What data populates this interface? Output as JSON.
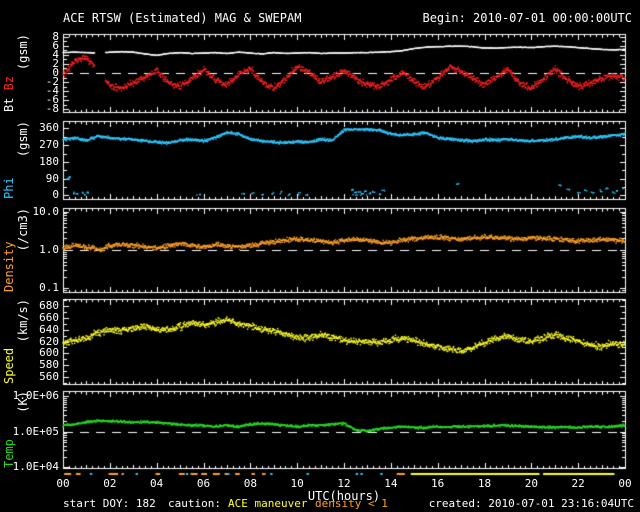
{
  "title": {
    "left": "ACE RTSW (Estimated) MAG & SWEPAM",
    "right": "Begin: 2010-07-01 00:00:00UTC"
  },
  "x_axis": {
    "label": "UTC(hours)",
    "tick_labels": [
      "00",
      "02",
      "04",
      "06",
      "08",
      "10",
      "12",
      "14",
      "16",
      "18",
      "20",
      "22",
      "00"
    ],
    "range_hours": [
      0,
      24
    ]
  },
  "footer": {
    "start_doy": "start DOY: 182",
    "caution_label": "caution:",
    "caution_maneuver": "ACE maneuver",
    "caution_density": "density < 1",
    "created": "created: 2010-07-01 23:16:04UTC"
  },
  "colors": {
    "background": "#000000",
    "frame": "#ffffff",
    "bt": "#ffffff",
    "bz": "#ff2222",
    "phi": "#2fc8ff",
    "density": "#ffa228",
    "speed": "#ffff2a",
    "temp": "#27d827"
  },
  "chart_data": {
    "type": "scatter",
    "title": "ACE RTSW (Estimated) MAG & SWEPAM",
    "xlabel": "UTC(hours)",
    "x_start": 0,
    "x_step": 0.5,
    "x_end": 24,
    "panels": [
      {
        "id": "mag",
        "label_parts": [
          {
            "text": "Bt",
            "color": "bt"
          },
          {
            "text": "Bz",
            "color": "bz"
          }
        ],
        "unit": "(gsm)",
        "scale": "linear",
        "range": [
          -8.6,
          8.6
        ],
        "ticks": {
          "major": [
            8,
            6,
            4,
            2,
            0,
            -2,
            -4,
            -6,
            -8
          ],
          "labels": [
            "8",
            "6",
            "4",
            "2",
            "0",
            "-2",
            "-4",
            "-6",
            "-8"
          ],
          "minor_step": 1
        },
        "dashed_at": 0,
        "gaps": [
          [
            1.35,
            1.8
          ]
        ],
        "series": [
          {
            "name": "Bt",
            "color": "bt",
            "style": "line",
            "noise": 0.1,
            "values": [
              4.5,
              4.6,
              4.5,
              4.4,
              4.6,
              4.7,
              4.6,
              4.2,
              3.9,
              4.3,
              4.5,
              4.3,
              4.4,
              4.5,
              4.3,
              4.6,
              4.4,
              4.2,
              4.5,
              4.3,
              4.4,
              4.5,
              4.3,
              4.4,
              4.4,
              4.5,
              4.5,
              4.6,
              4.7,
              4.9,
              5.4,
              5.7,
              5.8,
              5.9,
              5.9,
              5.8,
              5.5,
              5.5,
              5.6,
              5.7,
              5.6,
              5.8,
              5.9,
              5.8,
              5.6,
              5.4,
              5.2,
              5.1,
              5.2
            ]
          },
          {
            "name": "Bz",
            "color": "bz",
            "style": "scatter",
            "noise": 1.1,
            "values": [
              -0.5,
              2.6,
              3.4,
              0.5,
              -2.8,
              -3.4,
              -2.2,
              -1.0,
              0.4,
              -2.0,
              -3.0,
              -1.2,
              0.8,
              -1.6,
              -2.8,
              -0.2,
              0.9,
              -2.0,
              -3.4,
              -1.2,
              1.4,
              0.4,
              -2.0,
              -1.0,
              0.4,
              -1.2,
              -2.6,
              -3.0,
              -1.6,
              0.2,
              -2.0,
              -3.2,
              -1.2,
              1.4,
              0.4,
              -1.2,
              -2.6,
              -1.0,
              0.8,
              -2.2,
              -3.4,
              -1.2,
              0.8,
              -1.2,
              -3.0,
              -2.4,
              -1.2,
              -0.6,
              -1.0
            ]
          }
        ]
      },
      {
        "id": "phi",
        "label_parts": [
          {
            "text": "Phi",
            "color": "phi"
          }
        ],
        "unit": "(gsm)",
        "scale": "linear",
        "range": [
          -20,
          400
        ],
        "ticks": {
          "major": [
            360,
            270,
            180,
            90,
            0
          ],
          "labels": [
            "360",
            "270",
            "180",
            "90",
            "0"
          ],
          "minor_step": 45
        },
        "dashed_at": null,
        "series": [
          {
            "name": "Phi",
            "color": "phi",
            "style": "scatter",
            "noise": 11,
            "wrap360": true,
            "values": [
              300,
              308,
              296,
              318,
              310,
              304,
              300,
              292,
              286,
              282,
              296,
              300,
              292,
              310,
              338,
              330,
              302,
              292,
              286,
              282,
              290,
              286,
              300,
              296,
              350,
              356,
              354,
              352,
              330,
              324,
              330,
              336,
              312,
              302,
              296,
              292,
              300,
              296,
              300,
              296,
              292,
              296,
              300,
              310,
              318,
              310,
              315,
              322,
              330
            ]
          }
        ],
        "extra_points": [
          [
            0.25,
            88
          ],
          [
            0.3,
            96
          ],
          [
            0.45,
            12
          ],
          [
            0.6,
            6
          ],
          [
            0.8,
            15
          ],
          [
            0.95,
            4
          ],
          [
            1.1,
            10
          ],
          [
            5.8,
            3
          ],
          [
            7.7,
            6
          ],
          [
            8.1,
            12
          ],
          [
            8.5,
            4
          ],
          [
            8.9,
            9
          ],
          [
            9.3,
            14
          ],
          [
            9.7,
            5
          ],
          [
            10.1,
            10
          ],
          [
            10.4,
            3
          ],
          [
            12.35,
            28
          ],
          [
            12.5,
            12
          ],
          [
            12.65,
            20
          ],
          [
            12.8,
            8
          ],
          [
            12.95,
            24
          ],
          [
            13.1,
            10
          ],
          [
            13.3,
            16
          ],
          [
            13.5,
            6
          ],
          [
            13.7,
            22
          ],
          [
            16.9,
            60
          ],
          [
            21.2,
            50
          ],
          [
            21.6,
            30
          ],
          [
            22.0,
            18
          ],
          [
            22.3,
            25
          ],
          [
            22.6,
            12
          ],
          [
            23.0,
            22
          ],
          [
            23.2,
            35
          ],
          [
            23.5,
            15
          ],
          [
            23.7,
            28
          ],
          [
            23.9,
            40
          ]
        ]
      },
      {
        "id": "density",
        "label_parts": [
          {
            "text": "Density",
            "color": "density"
          }
        ],
        "unit": "(/cm3)",
        "scale": "log",
        "range": [
          0.08,
          12.5
        ],
        "ticks": {
          "major": [
            10,
            1,
            0.1
          ],
          "labels": [
            "10.0",
            "1.0",
            "0.1"
          ]
        },
        "dashed_at": 1,
        "series": [
          {
            "name": "Density",
            "color": "density",
            "style": "scatter",
            "noise": 0.09,
            "values": [
              1.1,
              1.3,
              1.2,
              1.0,
              1.3,
              1.4,
              1.3,
              1.2,
              1.1,
              1.3,
              1.4,
              1.3,
              1.2,
              1.4,
              1.3,
              1.2,
              1.3,
              1.5,
              1.6,
              1.8,
              1.9,
              1.8,
              1.7,
              1.5,
              1.8,
              1.9,
              1.8,
              1.6,
              1.5,
              1.8,
              2.0,
              2.1,
              2.2,
              2.0,
              1.9,
              2.1,
              2.2,
              2.1,
              2.0,
              1.9,
              2.1,
              2.0,
              1.9,
              1.8,
              1.7,
              1.8,
              1.9,
              1.8,
              1.7
            ]
          }
        ]
      },
      {
        "id": "speed",
        "label_parts": [
          {
            "text": "Speed",
            "color": "speed"
          }
        ],
        "unit": "(km/s)",
        "scale": "linear",
        "range": [
          548,
          692
        ],
        "ticks": {
          "major": [
            680,
            660,
            640,
            620,
            600,
            580,
            560
          ],
          "labels": [
            "680",
            "660",
            "640",
            "620",
            "600",
            "580",
            "560"
          ],
          "minor_step": 10
        },
        "dashed_at": null,
        "series": [
          {
            "name": "Speed",
            "color": "speed",
            "style": "scatter",
            "noise": 8,
            "values": [
              618,
              622,
              626,
              634,
              640,
              638,
              643,
              646,
              641,
              639,
              645,
              650,
              648,
              653,
              656,
              650,
              646,
              641,
              638,
              632,
              628,
              625,
              631,
              628,
              622,
              620,
              620,
              618,
              622,
              626,
              621,
              616,
              612,
              607,
              604,
              610,
              618,
              626,
              629,
              622,
              618,
              626,
              631,
              626,
              620,
              615,
              611,
              617,
              614
            ]
          }
        ]
      },
      {
        "id": "temp",
        "label_parts": [
          {
            "text": "Temp",
            "color": "temp"
          }
        ],
        "unit": "(K)",
        "scale": "log",
        "range": [
          9500,
          1400000
        ],
        "ticks": {
          "major": [
            1000000,
            100000,
            10000
          ],
          "labels": [
            "1.0E+06",
            "1.0E+05",
            "1.0E+04"
          ]
        },
        "dashed_at": 100000,
        "series": [
          {
            "name": "Temp",
            "color": "temp",
            "style": "scatter",
            "noise": 0.05,
            "values": [
              150000,
              160000,
              190000,
              200000,
              200000,
              190000,
              180000,
              190000,
              180000,
              170000,
              160000,
              150000,
              150000,
              140000,
              150000,
              140000,
              160000,
              170000,
              160000,
              150000,
              140000,
              150000,
              150000,
              160000,
              170000,
              110000,
              105000,
              120000,
              130000,
              140000,
              130000,
              130000,
              140000,
              135000,
              140000,
              140000,
              145000,
              150000,
              150000,
              145000,
              140000,
              135000,
              130000,
              135000,
              130000,
              140000,
              135000,
              140000,
              150000
            ]
          }
        ]
      }
    ],
    "caution_markers": {
      "density_lt1": [
        [
          0.05,
          0.35
        ],
        [
          0.55,
          0.75
        ],
        [
          1.95,
          2.35
        ],
        [
          2.5,
          2.6
        ],
        [
          3.95,
          4.15
        ],
        [
          4.95,
          5.2
        ],
        [
          5.45,
          5.75
        ],
        [
          5.9,
          6.15
        ],
        [
          6.4,
          6.7
        ],
        [
          6.9,
          7.1
        ],
        [
          7.35,
          7.55
        ],
        [
          8.05,
          8.2
        ],
        [
          8.5,
          8.65
        ],
        [
          14.25,
          14.6
        ]
      ],
      "ace_maneuver": [
        [
          14.85,
          20.35
        ],
        [
          20.5,
          23.55
        ]
      ],
      "other": [
        [
          1.15,
          1.25
        ],
        [
          3.1,
          3.2
        ],
        [
          5.25,
          5.35
        ],
        [
          7.0,
          7.1
        ],
        [
          8.85,
          8.95
        ],
        [
          10.4,
          10.5
        ],
        [
          12.5,
          12.6
        ],
        [
          12.7,
          12.8
        ],
        [
          13.55,
          13.65
        ]
      ]
    }
  }
}
